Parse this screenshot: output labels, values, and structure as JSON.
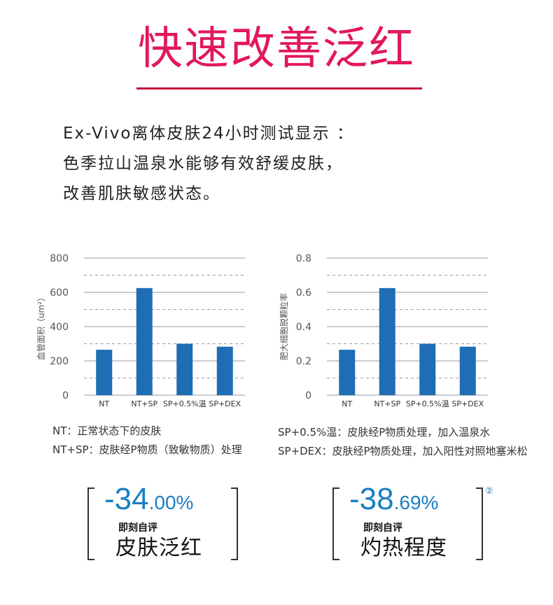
{
  "title": "快速改善泛红",
  "intro": {
    "line1": "Ex-Vivo离体皮肤24小时测试显示 ：",
    "line2": "色季拉山温泉水能够有效舒缓皮肤，",
    "line3": "改善肌肤敏感状态。"
  },
  "chart_data": [
    {
      "type": "bar",
      "ylabel": "血管面积（um²）",
      "categories": [
        "NT",
        "NT+SP",
        "SP+0.5%温",
        "SP+DEX"
      ],
      "values": [
        265,
        625,
        300,
        283
      ],
      "yticks": [
        "0",
        "200",
        "400",
        "600",
        "800"
      ],
      "ylim": [
        0,
        800
      ],
      "grid": true,
      "color": "#1f6db5"
    },
    {
      "type": "bar",
      "ylabel": "肥大细胞脱颗粒率",
      "categories": [
        "NT",
        "NT+SP",
        "SP+0.5%温",
        "SP+DEX"
      ],
      "values": [
        0.265,
        0.625,
        0.3,
        0.283
      ],
      "yticks": [
        "0",
        "0.2",
        "0.4",
        "0.6",
        "0.8"
      ],
      "ylim": [
        0,
        0.8
      ],
      "grid": true,
      "color": "#1f6db5"
    }
  ],
  "notes_left": {
    "line1": "NT：正常状态下的皮肤",
    "line2": "NT+SP：皮肤经P物质（致敏物质）处理"
  },
  "notes_right": {
    "line1": "SP+0.5%温：皮肤经P物质处理，加入温泉水",
    "line2": "SP+DEX：皮肤经P物质处理，加入阳性对照地塞米松"
  },
  "stats": [
    {
      "big": "-34",
      "small": ".00%",
      "sub": "即刻自评",
      "label": "皮肤泛红"
    },
    {
      "big": "-38",
      "small": ".69%",
      "sub": "即刻自评",
      "label": "灼热程度"
    }
  ],
  "footnote_mark": "②",
  "colors": {
    "accent": "#e2175c",
    "bar": "#1f6db5",
    "stat": "#1a7ec3"
  }
}
